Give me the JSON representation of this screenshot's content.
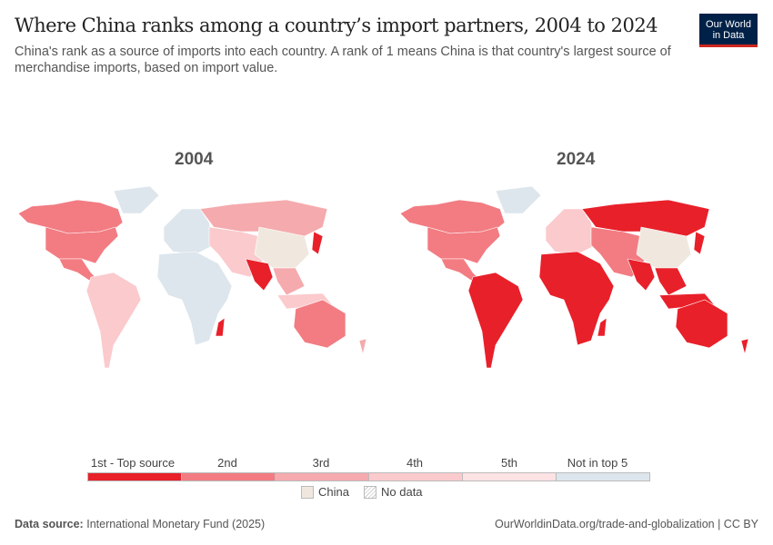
{
  "title": "Where China ranks among a country’s import partners, 2004 to 2024",
  "subtitle": "China's rank as a source of imports into each country. A rank of 1 means China is that country's largest source of merchandise imports, based on import value.",
  "logo": {
    "line1": "Our World",
    "line2": "in Data"
  },
  "maps": [
    {
      "year": "2004"
    },
    {
      "year": "2024"
    }
  ],
  "legend": {
    "bins": [
      {
        "label": "1st - Top source",
        "color": "#e8202a"
      },
      {
        "label": "2nd",
        "color": "#f27c82"
      },
      {
        "label": "3rd",
        "color": "#f5aaae"
      },
      {
        "label": "4th",
        "color": "#fbcacd"
      },
      {
        "label": "5th",
        "color": "#fde2e4"
      },
      {
        "label": "Not in top 5",
        "color": "#dde6ec"
      }
    ],
    "china": {
      "label": "China",
      "color": "#f0e8df"
    },
    "nodata": {
      "label": "No data"
    }
  },
  "map_fills": {
    "2004": {
      "canada": 2,
      "usa": 2,
      "mexico": 2,
      "greenland": 6,
      "south-america": 4,
      "europe": 6,
      "russia": 3,
      "middle-east": 4,
      "china": "china",
      "india": 1,
      "southeast-asia": 3,
      "indonesia": 4,
      "japan": 1,
      "africa": 6,
      "madagascar": 1,
      "australia": 2,
      "new-zealand": 3
    },
    "2024": {
      "canada": 2,
      "usa": 2,
      "mexico": 2,
      "greenland": 6,
      "south-america": 1,
      "europe": 4,
      "russia": 1,
      "middle-east": 2,
      "china": "china",
      "india": 1,
      "southeast-asia": 1,
      "indonesia": 1,
      "japan": 1,
      "africa": 1,
      "madagascar": 1,
      "australia": 1,
      "new-zealand": 1
    }
  },
  "footer": {
    "source_label": "Data source:",
    "source": "International Monetary Fund (2025)",
    "url": "OurWorldinData.org/trade-and-globalization | CC BY"
  }
}
